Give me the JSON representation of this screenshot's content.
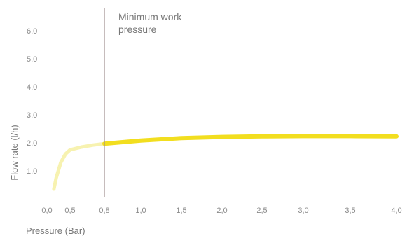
{
  "chart_data": {
    "type": "line",
    "title": "",
    "xlabel": "Pressure (Bar)",
    "ylabel": "Flow rate (l/h)",
    "xlim": [
      0.0,
      4.0
    ],
    "ylim": [
      0.0,
      6.0
    ],
    "x_tick_labels": [
      {
        "value": 0.0,
        "label": "0,0"
      },
      {
        "value": 0.5,
        "label": "0,5"
      },
      {
        "value": 0.8,
        "label": "0,8"
      },
      {
        "value": 1.0,
        "label": "1,0"
      },
      {
        "value": 1.5,
        "label": "1,5"
      },
      {
        "value": 2.0,
        "label": "2,0"
      },
      {
        "value": 2.5,
        "label": "2,5"
      },
      {
        "value": 3.0,
        "label": "3,0"
      },
      {
        "value": 3.5,
        "label": "3,5"
      },
      {
        "value": 4.0,
        "label": "4,0"
      }
    ],
    "y_tick_labels": [
      {
        "value": 1.0,
        "label": "1,0"
      },
      {
        "value": 2.0,
        "label": "2,0"
      },
      {
        "value": 3.0,
        "label": "3,0"
      },
      {
        "value": 4.0,
        "label": "4,0"
      },
      {
        "value": 5.0,
        "label": "5,0"
      },
      {
        "value": 6.0,
        "label": "6,0"
      }
    ],
    "grid": false,
    "series": [
      {
        "segment": "below_minimum_pressure",
        "color": "#f7f2b0",
        "x": [
          0.15,
          0.2,
          0.3,
          0.4,
          0.5,
          0.6,
          0.7,
          0.8
        ],
        "y": [
          0.35,
          0.75,
          1.3,
          1.6,
          1.75,
          1.85,
          1.92,
          1.97
        ]
      },
      {
        "segment": "above_minimum_pressure",
        "color": "#f2de1f",
        "x": [
          0.8,
          1.0,
          1.5,
          2.0,
          2.5,
          3.0,
          3.5,
          4.0
        ],
        "y": [
          1.97,
          2.08,
          2.17,
          2.21,
          2.23,
          2.24,
          2.24,
          2.23
        ]
      }
    ],
    "annotations": [
      {
        "type": "vline",
        "x": 0.8,
        "text_lines": [
          "Minimum work",
          "pressure"
        ],
        "color": "#a09090"
      }
    ]
  }
}
